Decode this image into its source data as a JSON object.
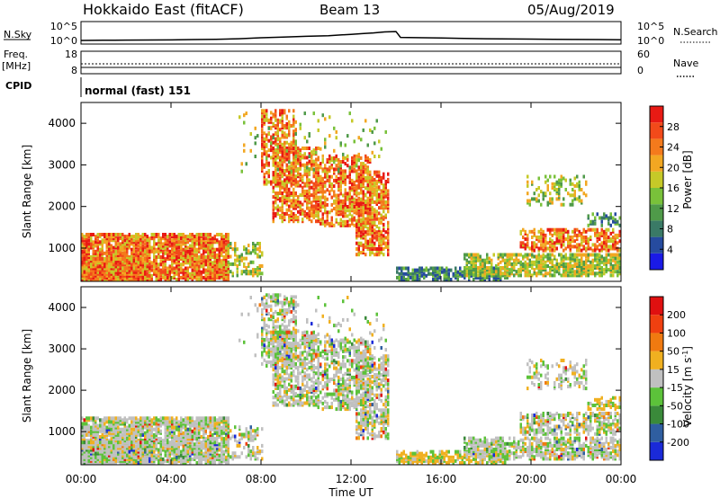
{
  "header": {
    "title": "Hokkaido East (fitACF)",
    "beam": "Beam 13",
    "date": "05/Aug/2019"
  },
  "noise_panel": {
    "left_label": "N.Sky",
    "right_label": "N.Search",
    "left_ticks": [
      "10^5",
      "10^0"
    ],
    "right_ticks": [
      "10^5",
      "10^0"
    ],
    "series": [
      {
        "t": [
          0,
          1,
          2,
          3,
          4,
          5,
          6,
          7,
          8,
          8.5,
          9,
          10,
          11,
          12,
          12.5,
          13,
          13.5,
          14,
          14.2,
          16,
          18,
          20,
          21,
          22,
          23,
          24
        ],
        "v": [
          0.0,
          0.05,
          0.1,
          0.12,
          0.15,
          0.25,
          0.35,
          0.5,
          0.8,
          0.9,
          1.0,
          1.2,
          1.4,
          1.8,
          2.0,
          2.2,
          2.5,
          2.6,
          0.9,
          0.7,
          0.5,
          0.4,
          0.35,
          0.3,
          0.25,
          0.2
        ]
      }
    ]
  },
  "freq_panel": {
    "left_label_1": "Freq.",
    "left_label_2": "[MHz]",
    "right_label": "Nave",
    "left_ticks": [
      "18",
      "8"
    ],
    "right_ticks": [
      "60",
      "0"
    ],
    "freq_value": 11
  },
  "cpid": {
    "label": "CPID",
    "mode": "normal (fast) 151"
  },
  "chart_data": [
    {
      "type": "heatmap",
      "name": "Power",
      "ylabel": "Slant Range [km]",
      "yticks": [
        "4000",
        "3000",
        "2000",
        "1000"
      ],
      "ytick_values": [
        4000,
        3000,
        2000,
        1000
      ],
      "ylim": [
        200,
        4500
      ],
      "xlim": [
        0,
        24
      ],
      "colorbar_label": "Power [dB]",
      "colorbar_ticks": [
        "28",
        "24",
        "20",
        "16",
        "12",
        "8",
        "4"
      ],
      "colorbar_values": [
        28,
        24,
        20,
        16,
        12,
        8,
        4
      ],
      "colorbar_range": [
        0,
        32
      ],
      "colorbar_colors": [
        "#1a1ae6",
        "#264b9f",
        "#3a7a66",
        "#4f9a49",
        "#79c13a",
        "#c6c928",
        "#f2a722",
        "#f47a1c",
        "#f24a1a",
        "#e81a14"
      ]
    },
    {
      "type": "heatmap",
      "name": "Velocity",
      "ylabel": "Slant Range [km]",
      "yticks": [
        "4000",
        "3000",
        "2000",
        "1000"
      ],
      "ytick_values": [
        4000,
        3000,
        2000,
        1000
      ],
      "ylim": [
        200,
        4500
      ],
      "xlim": [
        0,
        24
      ],
      "colorbar_label": "Velocity [m s",
      "colorbar_label_sup": "-1",
      "colorbar_label_end": "]",
      "colorbar_ticks": [
        "200",
        "100",
        "50",
        "15",
        "-15",
        "-50",
        "-100",
        "-200"
      ],
      "colorbar_colors": [
        "#1a2ad8",
        "#2f5ea0",
        "#3a8a3a",
        "#5cc23a",
        "#c0c0c0",
        "#f0b020",
        "#f07a10",
        "#f04010",
        "#e01010"
      ]
    }
  ],
  "xaxis": {
    "ticks": [
      "00:00",
      "04:00",
      "08:00",
      "12:00",
      "16:00",
      "20:00",
      "00:00"
    ],
    "tick_values": [
      0,
      4,
      8,
      12,
      16,
      20,
      24
    ],
    "label": "Time UT"
  }
}
